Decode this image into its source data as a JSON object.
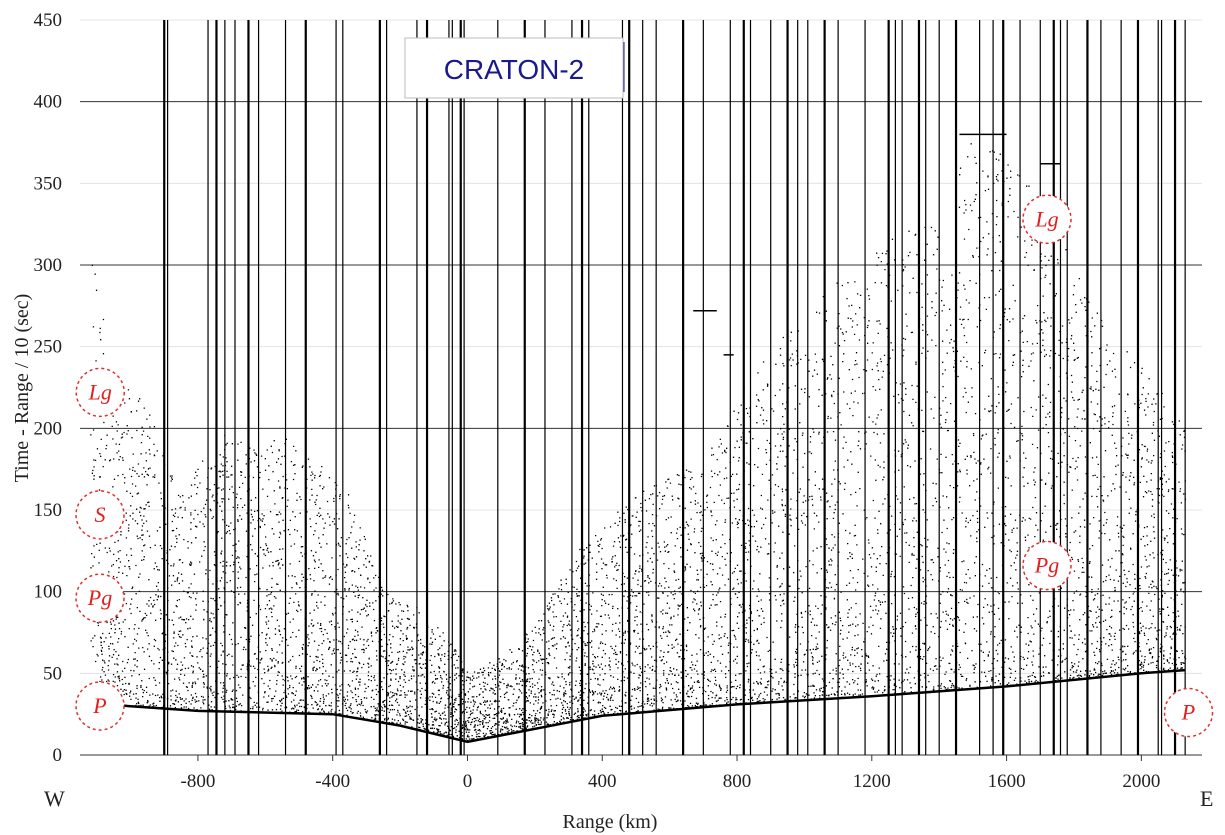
{
  "chart_data": {
    "type": "scatter",
    "title": "CRATON-2",
    "xlabel": "Range (km)",
    "ylabel": "Time - Range / 10 (sec)",
    "xlim": [
      -1150,
      2180
    ],
    "ylim": [
      0,
      450
    ],
    "x_ticks": [
      "-800",
      "-400",
      "0",
      "400",
      "800",
      "1200",
      "1600",
      "2000"
    ],
    "y_ticks": [
      "0",
      "50",
      "100",
      "150",
      "200",
      "250",
      "300",
      "350",
      "400",
      "450"
    ],
    "grid": true,
    "direction_labels": {
      "left": "W",
      "right": "E"
    },
    "phase_labels": [
      {
        "text": "Lg",
        "x": -1090,
        "y": 222
      },
      {
        "text": "S",
        "x": -1110,
        "y": 147
      },
      {
        "text": "Pg",
        "x": -1130,
        "y": 96
      },
      {
        "text": "P",
        "x": -1120,
        "y": 30
      },
      {
        "text": "Lg",
        "x": 1720,
        "y": 328
      },
      {
        "text": "Pg",
        "x": 1720,
        "y": 116
      },
      {
        "text": "P",
        "x": 2140,
        "y": 26
      }
    ],
    "first_arrival_curve": {
      "x": [
        -1150,
        -800,
        -400,
        -200,
        0,
        100,
        300,
        400,
        800,
        1200,
        1600,
        2000,
        2130
      ],
      "y": [
        32,
        27,
        25,
        18,
        8,
        12,
        20,
        24,
        31,
        36,
        42,
        50,
        52
      ]
    },
    "envelope": {
      "x": [
        -1150,
        -1050,
        -950,
        -850,
        -750,
        -650,
        -550,
        -450,
        -350,
        -250,
        -150,
        -50,
        0,
        100,
        200,
        300,
        400,
        500,
        600,
        700,
        800,
        900,
        1000,
        1100,
        1200,
        1300,
        1400,
        1500,
        1600,
        1700,
        1800,
        1900,
        2000,
        2130
      ],
      "top": [
        355,
        230,
        215,
        160,
        200,
        190,
        195,
        180,
        160,
        100,
        90,
        70,
        50,
        60,
        80,
        120,
        140,
        160,
        170,
        180,
        220,
        250,
        270,
        290,
        310,
        320,
        330,
        380,
        370,
        340,
        300,
        260,
        240,
        200
      ]
    },
    "vertical_trace_lines_x": [
      -900,
      -890,
      -770,
      -745,
      -720,
      -690,
      -650,
      -620,
      -540,
      -480,
      -390,
      -370,
      -260,
      -240,
      -150,
      -120,
      -55,
      -45,
      -20,
      -10,
      90,
      170,
      230,
      310,
      340,
      360,
      460,
      480,
      520,
      560,
      640,
      700,
      780,
      820,
      840,
      900,
      950,
      980,
      1010,
      1060,
      1100,
      1180,
      1250,
      1270,
      1290,
      1340,
      1360,
      1400,
      1450,
      1520,
      1560,
      1590,
      1640,
      1700,
      1740,
      1760,
      1780,
      1840,
      1880,
      1940,
      1990,
      2050,
      2060,
      2100,
      2130
    ],
    "horizontal_marks": [
      {
        "x0": 1460,
        "x1": 1600,
        "y": 380
      },
      {
        "x0": 670,
        "x1": 740,
        "y": 272
      },
      {
        "x0": 760,
        "x1": 790,
        "y": 245
      },
      {
        "x0": 1700,
        "x1": 1760,
        "y": 362
      }
    ],
    "colors": {
      "points": "#000000",
      "grid": "#555555",
      "title_text": "#1a1a8e",
      "phase_label": "#e02020"
    }
  }
}
